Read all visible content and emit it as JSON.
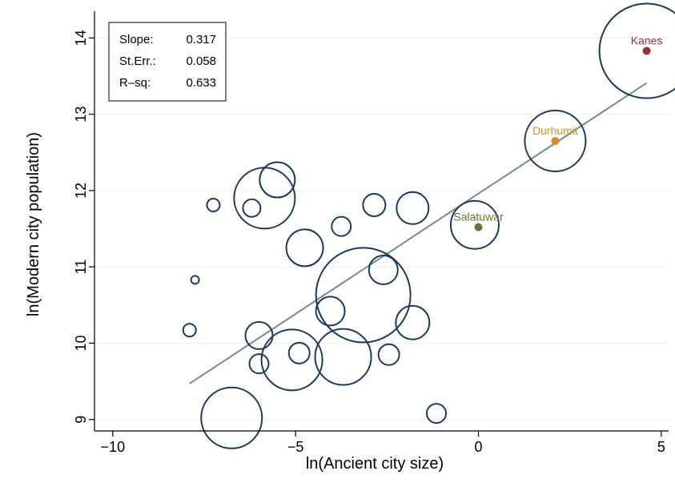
{
  "chart_data": {
    "type": "scatter",
    "title": "",
    "xlabel": "ln(Ancient city size)",
    "ylabel": "ln(Modern city population)",
    "xlim": [
      -10.5,
      5.2
    ],
    "ylim": [
      8.85,
      14.35
    ],
    "xticks": [
      -10,
      -5,
      0,
      5
    ],
    "yticks": [
      9,
      10,
      11,
      12,
      13,
      14
    ],
    "grid": "horizontal",
    "stats": [
      {
        "label": "Slope:",
        "value": "0.317"
      },
      {
        "label": "St.Err.:",
        "value": "0.058"
      },
      {
        "label": "R–sq:",
        "value": "0.633"
      }
    ],
    "fit_line": {
      "x": [
        -7.9,
        4.6
      ],
      "y": [
        9.47,
        13.41
      ]
    },
    "points": [
      {
        "x": -7.9,
        "y": 10.17,
        "r": 8
      },
      {
        "x": -7.75,
        "y": 10.83,
        "r": 5
      },
      {
        "x": -7.25,
        "y": 11.81,
        "r": 8
      },
      {
        "x": -6.75,
        "y": 9.02,
        "r": 38
      },
      {
        "x": -6.2,
        "y": 11.77,
        "r": 11
      },
      {
        "x": -6.0,
        "y": 10.1,
        "r": 17
      },
      {
        "x": -6.0,
        "y": 9.73,
        "r": 12
      },
      {
        "x": -5.85,
        "y": 11.9,
        "r": 38
      },
      {
        "x": -5.5,
        "y": 12.14,
        "r": 22
      },
      {
        "x": -5.1,
        "y": 9.78,
        "r": 38
      },
      {
        "x": -4.9,
        "y": 9.87,
        "r": 13
      },
      {
        "x": -4.75,
        "y": 11.25,
        "r": 23
      },
      {
        "x": -4.05,
        "y": 10.42,
        "r": 18
      },
      {
        "x": -3.75,
        "y": 11.53,
        "r": 12
      },
      {
        "x": -3.7,
        "y": 9.82,
        "r": 35
      },
      {
        "x": -3.15,
        "y": 10.63,
        "r": 59
      },
      {
        "x": -2.85,
        "y": 11.81,
        "r": 14
      },
      {
        "x": -2.6,
        "y": 10.96,
        "r": 18
      },
      {
        "x": -2.45,
        "y": 9.85,
        "r": 13
      },
      {
        "x": -1.8,
        "y": 11.77,
        "r": 20
      },
      {
        "x": -1.8,
        "y": 10.27,
        "r": 21
      },
      {
        "x": -1.15,
        "y": 9.08,
        "r": 12
      },
      {
        "x": -0.1,
        "y": 11.55,
        "r": 30
      },
      {
        "x": 2.1,
        "y": 12.65,
        "r": 38
      },
      {
        "x": 4.6,
        "y": 13.83,
        "r": 59
      }
    ],
    "labeled_points": [
      {
        "name": "Kanes",
        "x": 4.6,
        "y": 13.83,
        "color": "#9b2f3c"
      },
      {
        "name": "Durhumit",
        "x": 2.1,
        "y": 12.65,
        "color": "#e08a1e"
      },
      {
        "name": "Salatuwar",
        "x": 0.0,
        "y": 11.52,
        "color": "#5a7a32"
      }
    ],
    "colors": {
      "bubble": "#1a3b5f",
      "fit_line": "#6f8f85",
      "grid": "#e9edf1",
      "axis": "#000000"
    }
  }
}
